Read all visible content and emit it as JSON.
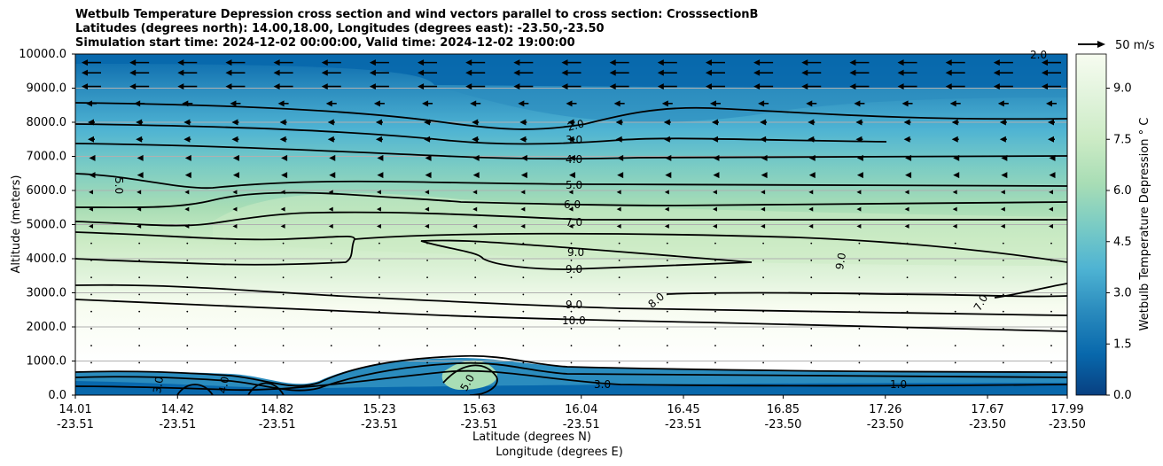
{
  "title_lines": [
    "Wetbulb Temperature Depression cross section and wind vectors parallel to cross section: CrosssectionB",
    "Latitudes (degrees north): 14.00,18.00, Longitudes (degrees east): -23.50,-23.50",
    "Simulation start time: 2024-12-02 00:00:00, Valid time: 2024-12-02 19:00:00"
  ],
  "chart_data": {
    "type": "contour",
    "ylabel": "Altitude (meters)",
    "xlabel_lat": "Latitude (degrees N)",
    "xlabel_lon": "Longitude (degrees E)",
    "ylim": [
      0,
      10000
    ],
    "y_ticks": [
      "0.0",
      "1000.0",
      "2000.0",
      "3000.0",
      "4000.0",
      "5000.0",
      "6000.0",
      "7000.0",
      "8000.0",
      "9000.0",
      "10000.0"
    ],
    "x_ticks": [
      {
        "lat": "14.01",
        "lon": "-23.51"
      },
      {
        "lat": "14.42",
        "lon": "-23.51"
      },
      {
        "lat": "14.82",
        "lon": "-23.51"
      },
      {
        "lat": "15.23",
        "lon": "-23.51"
      },
      {
        "lat": "15.63",
        "lon": "-23.51"
      },
      {
        "lat": "16.04",
        "lon": "-23.51"
      },
      {
        "lat": "16.45",
        "lon": "-23.51"
      },
      {
        "lat": "16.85",
        "lon": "-23.50"
      },
      {
        "lat": "17.26",
        "lon": "-23.50"
      },
      {
        "lat": "17.67",
        "lon": "-23.50"
      },
      {
        "lat": "17.99",
        "lon": "-23.50"
      }
    ],
    "grid": "horizontal",
    "colorbar": {
      "label": "Wetbulb Temperature Depression ° C",
      "range": [
        0,
        10
      ],
      "ticks": [
        "0.0",
        "1.5",
        "3.0",
        "4.5",
        "6.0",
        "7.5",
        "9.0"
      ],
      "colors": [
        "#084081",
        "#0868ac",
        "#2b8cbe",
        "#4eb3d3",
        "#7bccc4",
        "#a8ddb5",
        "#ccebc5",
        "#e0f3db",
        "#f7fcf0"
      ]
    },
    "quiver_key": {
      "label": "50 m/s"
    },
    "contour_labels": [
      "2.0",
      "3.0",
      "4.0",
      "5.0",
      "6.0",
      "7.0",
      "9.0",
      "9.0",
      "9.0",
      "10.0",
      "8.0",
      "9.0",
      "7.0",
      "5.0",
      "2.0",
      "3.0",
      "4.0",
      "5.0",
      "3.0",
      "1.0"
    ],
    "contour_levels_approx_m": [
      {
        "level": 2.0,
        "altitude_m": 8300
      },
      {
        "level": 3.0,
        "altitude_m": 7650
      },
      {
        "level": 4.0,
        "altitude_m": 7000
      },
      {
        "level": 5.0,
        "altitude_m": 6100
      },
      {
        "level": 6.0,
        "altitude_m": 5500
      },
      {
        "level": 7.0,
        "altitude_m": 4950
      },
      {
        "level": 9.0,
        "altitude_m": 3800
      },
      {
        "level": 10.0,
        "altitude_m": 2300
      }
    ]
  }
}
